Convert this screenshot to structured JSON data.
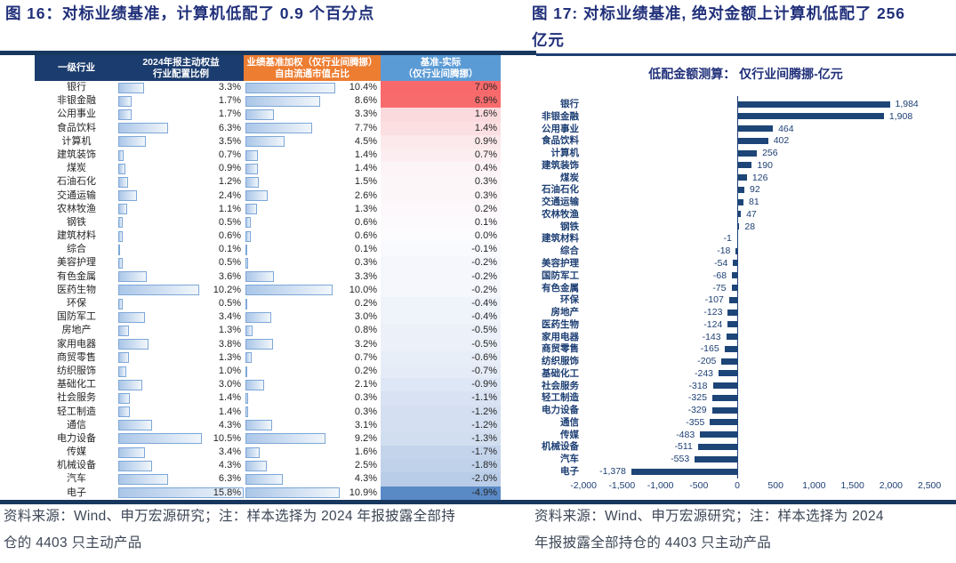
{
  "fig16": {
    "title": "图 16：对标业绩基准，计算机低配了 0.9 个百分点",
    "table_headers": {
      "industry": "一级行业",
      "alloc_line1": "2024年报主动权益",
      "alloc_line2": "行业配置比例",
      "bench_line1": "业绩基准加权（仅行业间腾挪）",
      "bench_line2": "自由流通市值占比",
      "diff_line1": "基准-实际",
      "diff_line2": "（仅行业间腾挪）"
    },
    "footer_line1": "资料来源：Wind、申万宏源研究；注：样本选择为 2024 年报披露全部持",
    "footer_line2": "仓的 4403 只主动产品"
  },
  "fig17": {
    "title": "图 17: 对标业绩基准, 绝对金额上计算机低配了 256 亿元",
    "title_line1": "图 17: 对标业绩基准, 绝对金额上计算机低配了 256",
    "title_line2": "亿元",
    "footer_line1": "资料来源：Wind、申万宏源研究；注：样本选择为 2024",
    "footer_line2": "年报披露全部持仓的 4403 只主动产品"
  },
  "chart_data": [
    {
      "type": "table",
      "title": "图 16：对标业绩基准，计算机低配了 0.9 个百分点",
      "columns": [
        "一级行业",
        "2024年报主动权益行业配置比例",
        "业绩基准加权（仅行业间腾挪）自由流通市值占比",
        "基准-实际（仅行业间腾挪）"
      ],
      "categories": [
        "银行",
        "非银金融",
        "公用事业",
        "食品饮料",
        "计算机",
        "建筑装饰",
        "煤炭",
        "石油石化",
        "交通运输",
        "农林牧渔",
        "钢铁",
        "建筑材料",
        "综合",
        "美容护理",
        "有色金属",
        "医药生物",
        "环保",
        "国防军工",
        "房地产",
        "家用电器",
        "商贸零售",
        "纺织服饰",
        "基础化工",
        "社会服务",
        "轻工制造",
        "通信",
        "电力设备",
        "传媒",
        "机械设备",
        "汽车",
        "电子"
      ],
      "series": [
        {
          "name": "2024年报主动权益行业配置比例",
          "values": [
            3.3,
            1.7,
            1.7,
            6.3,
            3.5,
            0.7,
            0.9,
            1.2,
            2.4,
            1.1,
            0.5,
            0.6,
            0.1,
            0.5,
            3.6,
            10.2,
            0.5,
            3.4,
            1.3,
            3.8,
            1.3,
            1.0,
            3.0,
            1.4,
            1.4,
            4.3,
            10.5,
            3.4,
            4.3,
            6.3,
            15.8
          ]
        },
        {
          "name": "业绩基准加权（仅行业间腾挪）自由流通市值占比",
          "values": [
            10.4,
            8.6,
            3.3,
            7.7,
            4.5,
            1.4,
            1.4,
            1.5,
            2.6,
            1.3,
            0.6,
            0.6,
            0.1,
            0.3,
            3.3,
            10.0,
            0.2,
            3.0,
            0.8,
            3.2,
            0.7,
            0.2,
            2.1,
            0.3,
            0.3,
            3.1,
            9.2,
            1.6,
            2.5,
            4.3,
            10.9
          ]
        },
        {
          "name": "基准-实际（仅行业间腾挪）",
          "values": [
            7.0,
            6.9,
            1.6,
            1.4,
            0.9,
            0.7,
            0.4,
            0.3,
            0.3,
            0.2,
            0.1,
            0.0,
            -0.1,
            -0.2,
            -0.2,
            -0.2,
            -0.4,
            -0.4,
            -0.5,
            -0.5,
            -0.6,
            -0.7,
            -0.9,
            -1.1,
            -1.2,
            -1.2,
            -1.3,
            -1.7,
            -1.8,
            -2.0,
            -4.9
          ]
        }
      ],
      "bar_axis_max": 15.8,
      "color_scale": {
        "max_color": "#F8696B",
        "mid_color": "#FCFCFF",
        "min_color": "#5A8AC6",
        "domain": [
          7.0,
          0,
          -4.9
        ]
      },
      "value_format": "percent_1dp"
    },
    {
      "type": "bar",
      "title": "低配金额测算： 仅行业间腾挪-亿元",
      "orientation": "horizontal",
      "categories": [
        "银行",
        "非银金融",
        "公用事业",
        "食品饮料",
        "计算机",
        "建筑装饰",
        "煤炭",
        "石油石化",
        "交通运输",
        "农林牧渔",
        "钢铁",
        "建筑材料",
        "综合",
        "美容护理",
        "国防军工",
        "有色金属",
        "环保",
        "房地产",
        "医药生物",
        "家用电器",
        "商贸零售",
        "纺织服饰",
        "基础化工",
        "社会服务",
        "轻工制造",
        "电力设备",
        "通信",
        "传媒",
        "机械设备",
        "汽车",
        "电子"
      ],
      "values": [
        1984,
        1908,
        464,
        402,
        256,
        190,
        126,
        92,
        81,
        47,
        28,
        -1,
        -18,
        -54,
        -68,
        -75,
        -107,
        -123,
        -124,
        -143,
        -165,
        -205,
        -243,
        -318,
        -325,
        -329,
        -355,
        -483,
        -511,
        -553,
        -1378
      ],
      "xlim": [
        -2000,
        2500
      ],
      "xticks": [
        -2000,
        -1500,
        -1000,
        -500,
        0,
        500,
        1000,
        1500,
        2000,
        2500
      ],
      "bar_color": "#1e4578",
      "grid": false,
      "legend": false
    }
  ]
}
